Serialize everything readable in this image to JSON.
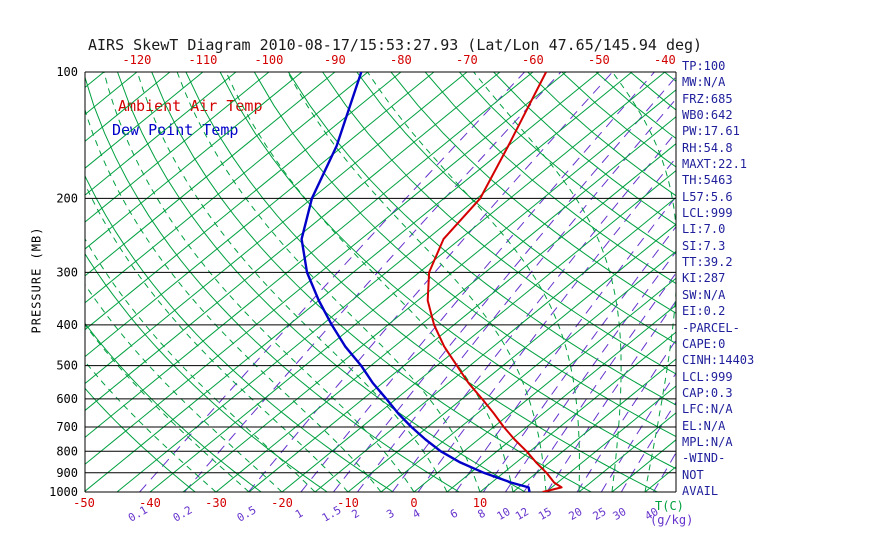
{
  "title": "AIRS SkewT Diagram 2010-08-17/15:53:27.93 (Lat/Lon 47.65/145.94 deg)",
  "legend": {
    "ambient_label": "Ambient Air Temp",
    "dewpoint_label": "Dew Point Temp"
  },
  "axes": {
    "pressure_label": "PRESSURE (MB)",
    "pressure_ticks_mb": [
      100,
      200,
      300,
      400,
      500,
      600,
      700,
      800,
      900,
      1000
    ],
    "top_temp_ticks_c": [
      -120,
      -110,
      -100,
      -90,
      -80,
      -70,
      -60,
      -50,
      -40
    ],
    "bottom_temp_ticks_c": [
      -50,
      -40,
      -30,
      -20,
      -10,
      0,
      10
    ],
    "temp_unit_label": "T(C)",
    "mixing_ratio_ticks_gkg": [
      0.1,
      0.2,
      0.5,
      1,
      1.5,
      2,
      3,
      4,
      6,
      8,
      10,
      12,
      15,
      20,
      25,
      30,
      40
    ],
    "mixing_unit_label": "(g/kg)"
  },
  "stats_panel": {
    "lines": [
      "TP:100",
      "MW:N/A",
      "FRZ:685",
      "WB0:642",
      "PW:17.61",
      "RH:54.8",
      "MAXT:22.1",
      "TH:5463",
      "L57:5.6",
      "LCL:999",
      "LI:7.0",
      "SI:7.3",
      "TT:39.2",
      "KI:287",
      "SW:N/A",
      "EI:0.2",
      "-PARCEL-",
      "CAPE:0",
      "CINH:14403",
      "LCL:999",
      "CAP:0.3",
      "LFC:N/A",
      "EL:N/A",
      "MPL:N/A",
      "-WIND-",
      "NOT",
      "AVAIL"
    ]
  },
  "colors": {
    "isotherm_green": "#00a040",
    "mixing_purple": "#6633cc",
    "temp_red": "#d40000",
    "dewpoint_blue": "#0000c8",
    "stats_navy": "#1f1f9c",
    "axis_black": "#000000"
  },
  "chart_data": {
    "type": "line",
    "title": "AIRS SkewT Diagram 2010-08-17/15:53:27.93 (Lat/Lon 47.65/145.94 deg)",
    "x_axis": {
      "label": "T(C)",
      "top_ticks_c": [
        -120,
        -110,
        -100,
        -90,
        -80,
        -70,
        -60,
        -50,
        -40
      ],
      "bottom_ticks_c": [
        -50,
        -40,
        -30,
        -20,
        -10,
        0,
        10
      ],
      "skewed": true
    },
    "y_axis": {
      "label": "PRESSURE (MB)",
      "scale": "log",
      "range_mb": [
        100,
        1000
      ]
    },
    "mixing_ratio_lines_gkg": [
      0.1,
      0.2,
      0.5,
      1,
      1.5,
      2,
      3,
      4,
      6,
      8,
      10,
      12,
      15,
      20,
      25,
      30,
      40
    ],
    "pressure_mb": [
      1000,
      975,
      950,
      900,
      850,
      800,
      750,
      700,
      650,
      600,
      550,
      500,
      450,
      400,
      350,
      300,
      250,
      200,
      150,
      100
    ],
    "series": [
      {
        "name": "Ambient Air Temp",
        "color": "#d40000",
        "temps_c": [
          19.5,
          21.5,
          19.5,
          16.5,
          13,
          9.5,
          5.5,
          1.5,
          -2.5,
          -7,
          -12,
          -17,
          -22.5,
          -28,
          -33.5,
          -38.5,
          -42.5,
          -44.5,
          -50,
          -58
        ]
      },
      {
        "name": "Dew Point Temp",
        "color": "#0000c8",
        "temps_c": [
          17.5,
          16.5,
          13,
          7,
          1.5,
          -3.5,
          -8,
          -12.5,
          -17,
          -21.5,
          -26.5,
          -31.5,
          -37.5,
          -43.5,
          -50,
          -57,
          -64,
          -70,
          -76,
          -86
        ]
      }
    ]
  }
}
